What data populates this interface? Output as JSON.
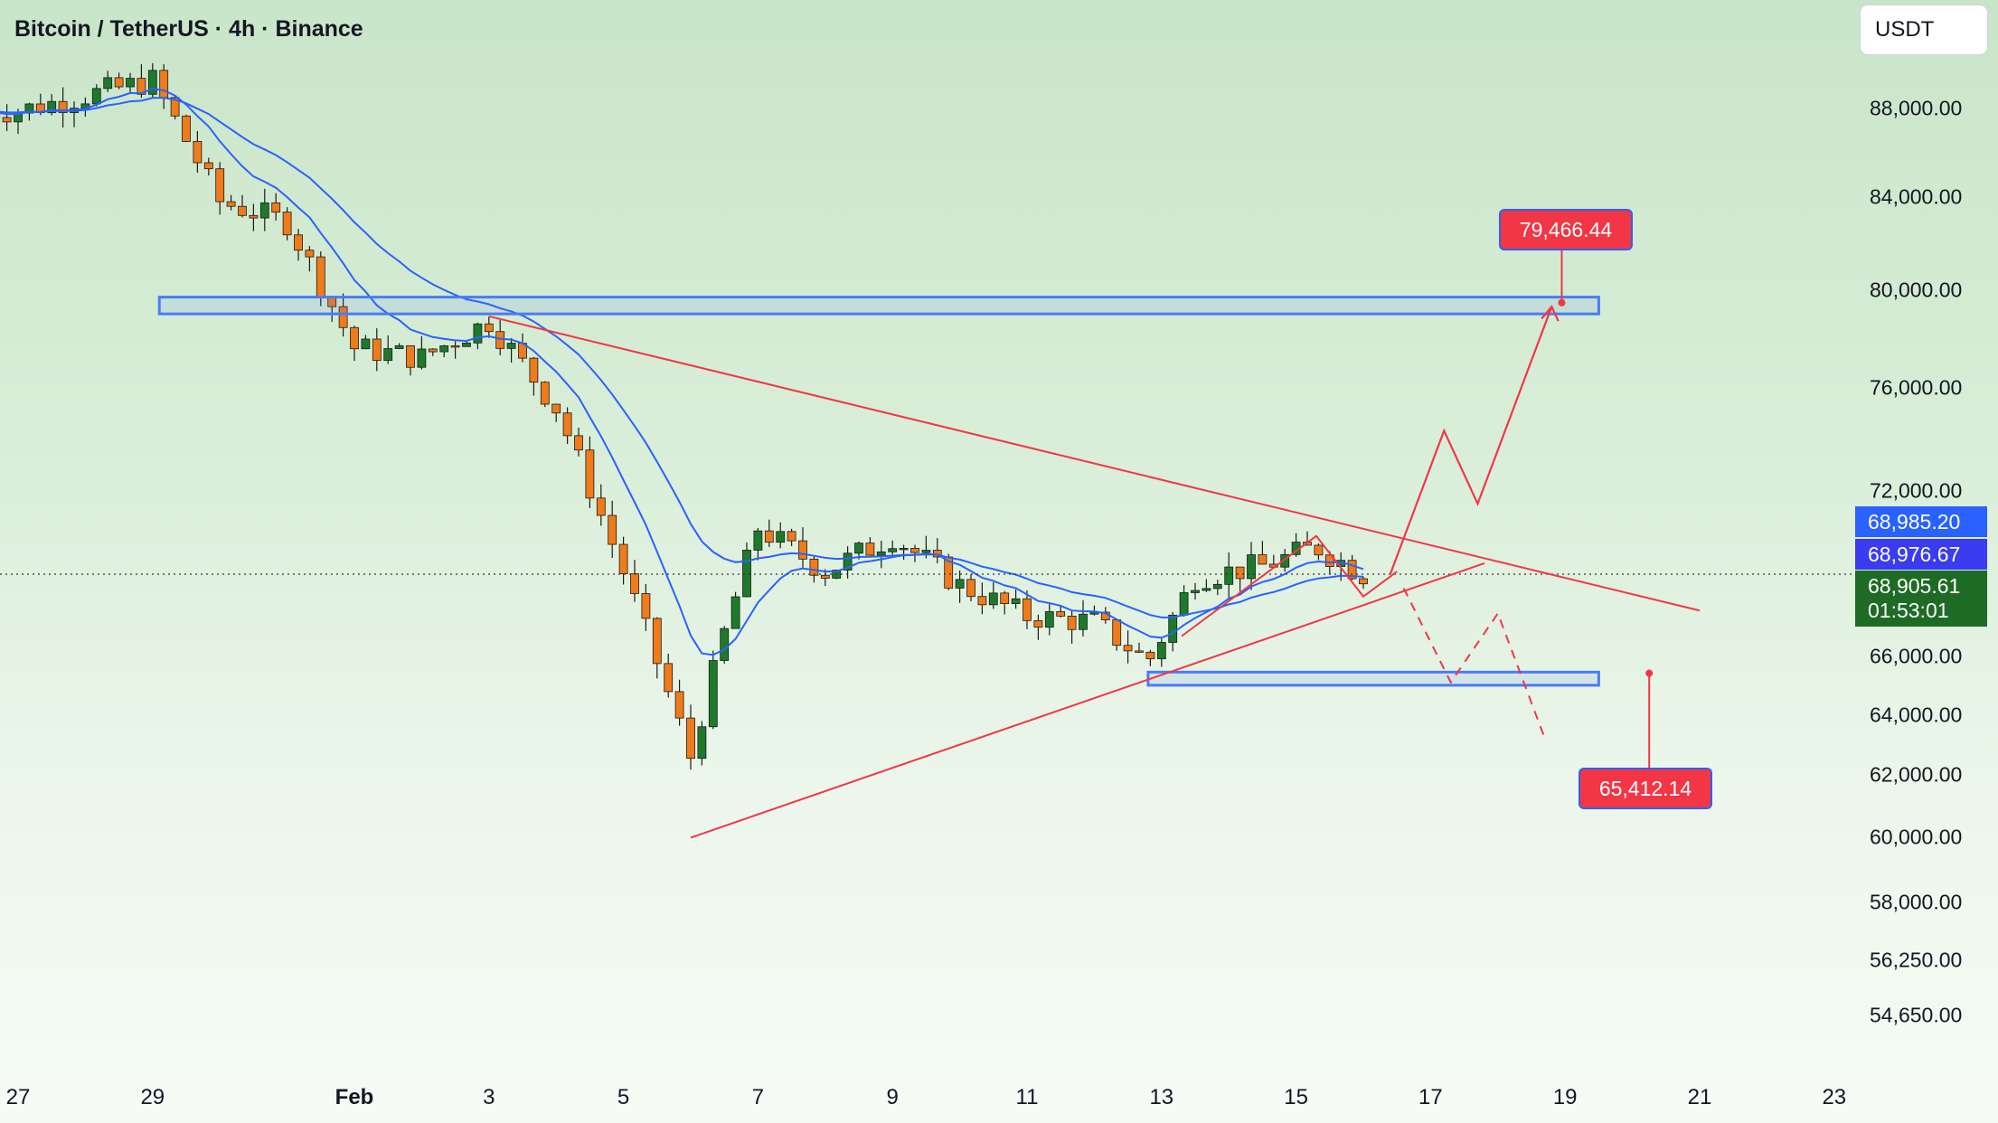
{
  "header": {
    "title": "Bitcoin / TetherUS · 4h · Binance",
    "currency": "USDT"
  },
  "colors": {
    "up": "#1e7a2b",
    "down": "#ef7b1a",
    "ema": "#2962ff",
    "line": "#f23645",
    "zone": "#4a7cf6"
  },
  "price_tags": {
    "ema_slow": "68,985.20",
    "ema_fast": "68,976.67",
    "last_price": "68,905.61",
    "countdown": "01:53:01"
  },
  "targets": {
    "upper": "79,466.44",
    "lower": "65,412.14"
  },
  "chart_data": {
    "type": "candlestick",
    "interval": "4h",
    "y_axis_scale": "log",
    "y_ticks": [
      "88,000.00",
      "84,000.00",
      "80,000.00",
      "76,000.00",
      "72,000.00",
      "66,000.00",
      "64,000.00",
      "62,000.00",
      "60,000.00",
      "58,000.00",
      "56,250.00",
      "54,650.00"
    ],
    "y_tick_values": [
      88000,
      84000,
      80000,
      76000,
      72000,
      66000,
      64000,
      62000,
      60000,
      58000,
      56250,
      54650
    ],
    "x_ticks": [
      "27",
      "29",
      "Feb",
      "3",
      "5",
      "7",
      "9",
      "11",
      "13",
      "15",
      "17",
      "19",
      "21",
      "23"
    ],
    "ylim": [
      54000,
      91000
    ],
    "last_price": 68905.61,
    "ema_fast_last": 68976.67,
    "ema_slow_last": 68985.2,
    "resistance_zone": [
      79000,
      79700
    ],
    "support_zone": [
      65000,
      65450
    ],
    "upper_target": 79466.44,
    "lower_target": 65412.14,
    "triangle_upper_line": [
      [
        "Feb 3",
        78900
      ],
      [
        "Feb 21",
        67600
      ]
    ],
    "triangle_lower_line": [
      [
        "Feb 6",
        60000
      ],
      [
        "Feb 17.8",
        69300
      ]
    ],
    "key_closes": [
      [
        "Jan 27",
        87900
      ],
      [
        "Jan 29",
        89300
      ],
      [
        "Jan 30",
        83800
      ],
      [
        "Jan 31",
        82900
      ],
      [
        "Feb 1",
        77600
      ],
      [
        "Feb 2",
        77200
      ],
      [
        "Feb 3",
        78700
      ],
      [
        "Feb 4",
        75200
      ],
      [
        "Feb 5",
        69000
      ],
      [
        "Feb 6",
        62600
      ],
      [
        "Feb 6.5",
        66800
      ],
      [
        "Feb 7",
        70600
      ],
      [
        "Feb 8",
        69000
      ],
      [
        "Feb 9",
        70300
      ],
      [
        "Feb 10",
        68500
      ],
      [
        "Feb 11",
        67400
      ],
      [
        "Feb 12",
        67200
      ],
      [
        "Feb 12.8",
        65800
      ],
      [
        "Feb 13.5",
        68800
      ],
      [
        "Feb 14.5",
        69200
      ],
      [
        "Feb 15.3",
        69900
      ],
      [
        "Feb 16",
        68900
      ]
    ]
  }
}
